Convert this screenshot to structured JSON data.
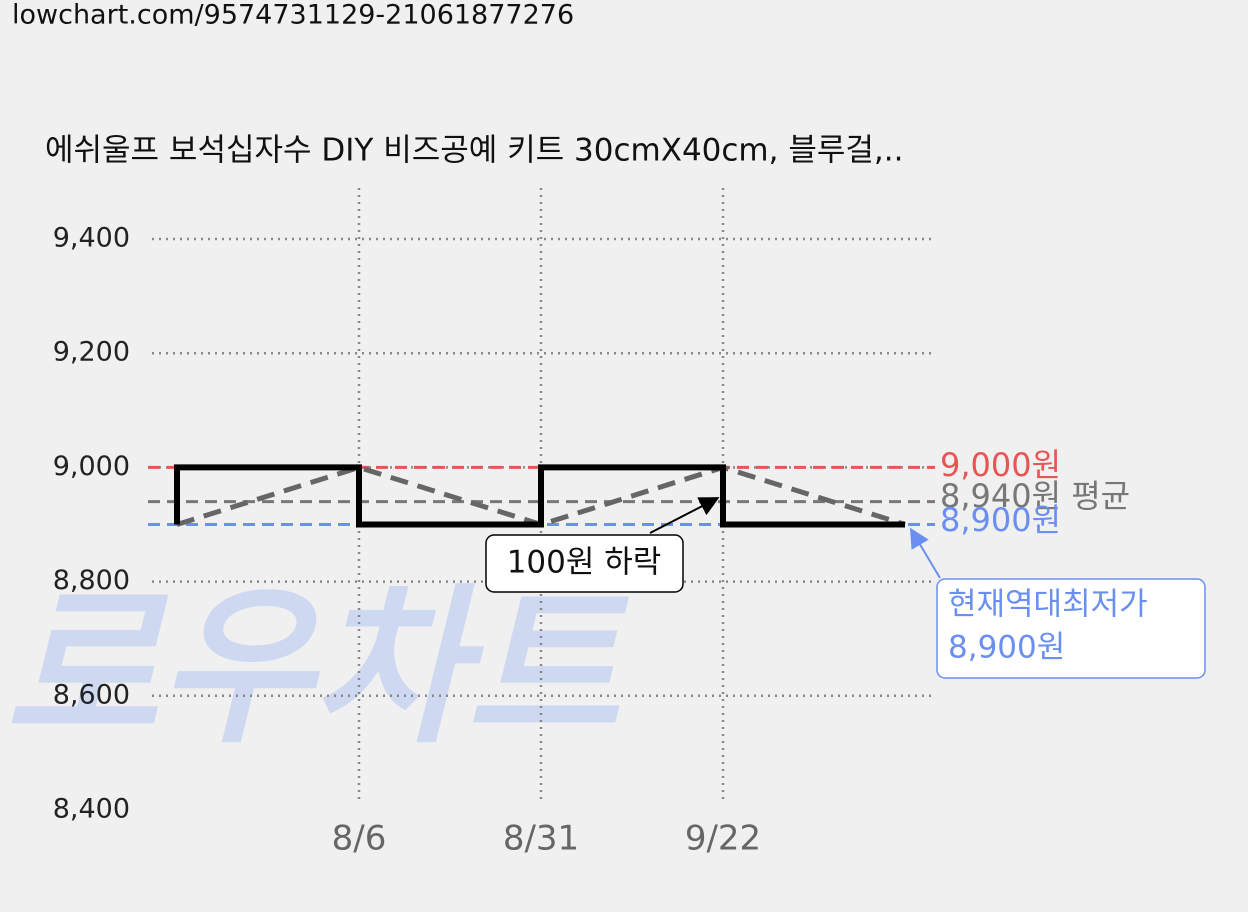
{
  "url": "lowchart.com/9574731129-21061877276",
  "chart_data": {
    "type": "line",
    "step": "pre",
    "title": "에쉬울프 보석십자수 DIY 비즈공예 키트 30cmX40cm, 블루걸,..",
    "watermark": "로우차트",
    "categories": [
      null,
      "8/6",
      "8/31",
      "9/22",
      null
    ],
    "values": [
      8900,
      9000,
      8900,
      9000,
      8900
    ],
    "color": "#000000",
    "trend_color": "#666666",
    "ylim": [
      8400,
      9400
    ],
    "yticks": [
      {
        "value": 8400,
        "label": "8,400"
      },
      {
        "value": 8600,
        "label": "8,600"
      },
      {
        "value": 8800,
        "label": "8,800"
      },
      {
        "value": 9000,
        "label": "9,000"
      },
      {
        "value": 9200,
        "label": "9,200"
      },
      {
        "value": 9400,
        "label": "9,400"
      }
    ],
    "grid": true,
    "reference_lines": [
      {
        "value": 9000,
        "label": "9,000원",
        "color": "#e85555"
      },
      {
        "value": 8940,
        "label": "8,940원 평균",
        "color": "#777777"
      },
      {
        "value": 8900,
        "label": "8,900원",
        "color": "#6a8ff0"
      }
    ],
    "annotations": [
      {
        "text": "100원 하락"
      },
      {
        "text": [
          "현재역대최저가",
          "8,900원"
        ],
        "color": "#6a8ff0"
      }
    ]
  }
}
